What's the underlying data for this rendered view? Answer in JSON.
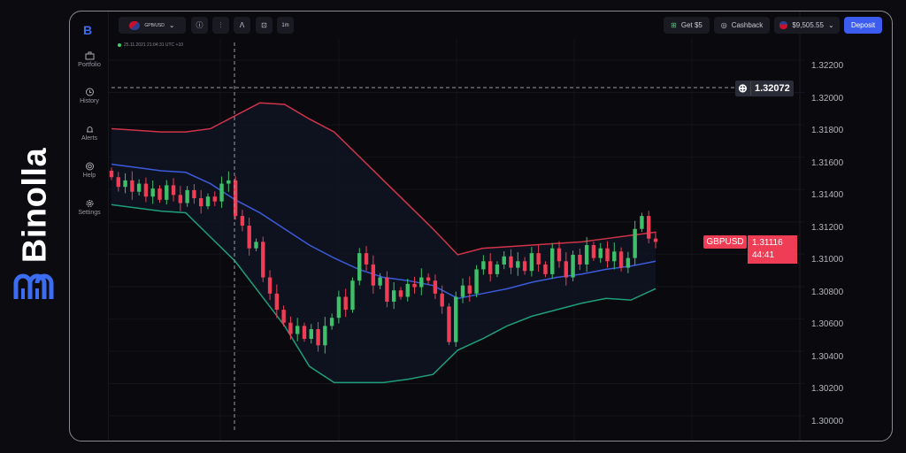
{
  "brand": {
    "name": "Binolla"
  },
  "sidebar": {
    "items": [
      {
        "label": "Portfolio",
        "icon": "briefcase-icon"
      },
      {
        "label": "History",
        "icon": "history-icon"
      },
      {
        "label": "Alerts",
        "icon": "bell-icon"
      },
      {
        "label": "Help",
        "icon": "lifebuoy-icon"
      },
      {
        "label": "Settings",
        "icon": "gear-icon"
      }
    ]
  },
  "toolbar": {
    "pair": "GPB/USD",
    "timeframe": "1m",
    "get_bonus": "Get $5",
    "cashback": "Cashback",
    "balance": "$9,505.55",
    "deposit": "Deposit"
  },
  "datetime": "25.11.2021  21:04:31  UTC +10",
  "crosshair": {
    "price": "1.32072"
  },
  "current": {
    "symbol": "GBPUSD",
    "price": "1.31116",
    "countdown": "44:41"
  },
  "colors": {
    "up": "#3fbf6a",
    "down": "#ef3d55",
    "upper_band": "#d0344a",
    "middle_band": "#3b5bdb",
    "lower_band": "#1f9e7a",
    "accent": "#3c5cf0"
  },
  "chart_data": {
    "type": "candlestick",
    "y_ticks": [
      "1.32200",
      "1.32000",
      "1.31800",
      "1.31600",
      "1.31400",
      "1.31200",
      "1.31000",
      "1.30800",
      "1.30600",
      "1.30400",
      "1.30200",
      "1.30000"
    ],
    "ylim": [
      1.3,
      1.322
    ],
    "closes": [
      1.3152,
      1.3146,
      1.315,
      1.3143,
      1.3148,
      1.314,
      1.3145,
      1.3138,
      1.3147,
      1.3141,
      1.3136,
      1.3144,
      1.3139,
      1.3134,
      1.314,
      1.3137,
      1.3148,
      1.315,
      1.3128,
      1.3122,
      1.3108,
      1.3112,
      1.309,
      1.308,
      1.307,
      1.3062,
      1.3055,
      1.306,
      1.3052,
      1.3058,
      1.3048,
      1.306,
      1.3065,
      1.3078,
      1.307,
      1.3088,
      1.3105,
      1.3098,
      1.3085,
      1.309,
      1.3075,
      1.3082,
      1.3078,
      1.3086,
      1.3084,
      1.309,
      1.3088,
      1.308,
      1.3072,
      1.305,
      1.3078,
      1.3085,
      1.308,
      1.3095,
      1.31,
      1.3092,
      1.3098,
      1.3103,
      1.3096,
      1.31,
      1.3094,
      1.3105,
      1.3098,
      1.3092,
      1.3108,
      1.31,
      1.309,
      1.3104,
      1.3098,
      1.311,
      1.3102,
      1.3108,
      1.31,
      1.3106,
      1.3096,
      1.3102,
      1.312,
      1.3128,
      1.3114,
      1.3112
    ],
    "bollinger": {
      "upper": [
        1.3182,
        1.3181,
        1.318,
        1.318,
        1.3182,
        1.319,
        1.3198,
        1.3197,
        1.3188,
        1.318,
        1.3165,
        1.315,
        1.3135,
        1.312,
        1.3104,
        1.3108,
        1.3109,
        1.311,
        1.3111,
        1.3112,
        1.3114,
        1.3116,
        1.3118
      ],
      "middle": [
        1.316,
        1.3158,
        1.3156,
        1.3155,
        1.3148,
        1.3138,
        1.313,
        1.312,
        1.311,
        1.3102,
        1.3095,
        1.309,
        1.3088,
        1.3085,
        1.3077,
        1.308,
        1.3083,
        1.3087,
        1.309,
        1.3092,
        1.3095,
        1.3097,
        1.31
      ],
      "lower": [
        1.3135,
        1.3133,
        1.3131,
        1.313,
        1.3115,
        1.31,
        1.308,
        1.306,
        1.3035,
        1.3025,
        1.3025,
        1.3025,
        1.3027,
        1.303,
        1.3045,
        1.3052,
        1.306,
        1.3066,
        1.307,
        1.3074,
        1.3077,
        1.3076,
        1.3083
      ]
    }
  }
}
